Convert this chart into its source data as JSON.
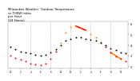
{
  "title": "Milwaukee Weather  Outdoor Temperature\nvs THSW Index\nper Hour\n(24 Hours)",
  "background_color": "#ffffff",
  "plot_bg_color": "#ffffff",
  "hours": [
    0,
    1,
    2,
    3,
    4,
    5,
    6,
    7,
    8,
    9,
    10,
    11,
    12,
    13,
    14,
    15,
    16,
    17,
    18,
    19,
    20,
    21,
    22,
    23
  ],
  "temp": [
    38,
    36,
    34,
    33,
    32,
    31,
    30,
    31,
    33,
    36,
    40,
    44,
    46,
    47,
    47,
    46,
    45,
    44,
    42,
    40,
    37,
    35,
    33,
    32
  ],
  "thsw": [
    30,
    28,
    26,
    25,
    23,
    22,
    21,
    23,
    27,
    34,
    42,
    52,
    57,
    58,
    56,
    54,
    50,
    47,
    43,
    38,
    33,
    29,
    27,
    25
  ],
  "temp_color": "#000000",
  "thsw_orange": "#ff8800",
  "thsw_red": "#ff0000",
  "grid_color": "#bbbbbb",
  "ylim_min": 18,
  "ylim_max": 62,
  "ytick_values": [
    20,
    30,
    40,
    50,
    60
  ],
  "ytick_labels": [
    "2.",
    "3.",
    "4.",
    "5.",
    "6."
  ],
  "xtick_positions": [
    0,
    2,
    4,
    6,
    8,
    10,
    12,
    14,
    16,
    18,
    20,
    22
  ],
  "xtick_labels": [
    "12",
    "2",
    "4",
    "6",
    "8",
    "10",
    "12",
    "2",
    "4",
    "6",
    "8",
    "10"
  ],
  "vgrid_positions": [
    4,
    8,
    12,
    16,
    20
  ],
  "red_line_start": 13,
  "red_line_end": 15,
  "orange_line_start": 20,
  "orange_line_end": 22,
  "marker_size": 2.0,
  "title_fontsize": 2.8
}
